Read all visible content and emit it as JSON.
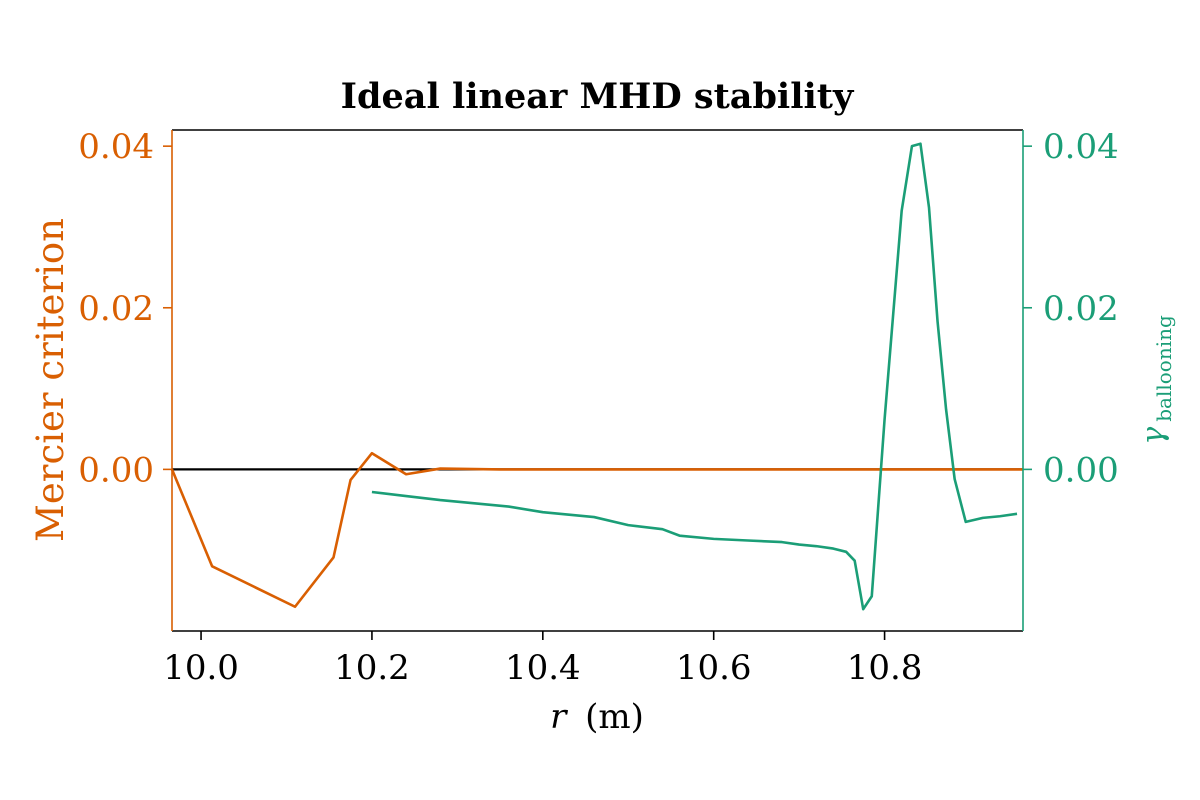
{
  "chart_data": {
    "type": "line",
    "title": "Ideal linear MHD stability",
    "xlabel": "r (m)",
    "xlabel_var": "r",
    "xlabel_unit": "(m)",
    "xlim": [
      9.966,
      10.962
    ],
    "x_ticks": [
      10.0,
      10.2,
      10.4,
      10.6,
      10.8
    ],
    "x_tick_labels": [
      "10.0",
      "10.2",
      "10.4",
      "10.6",
      "10.8"
    ],
    "ylabel_left": "Mercier criterion",
    "ylabel_right": "γ_ballooning",
    "ylabel_right_symbol": "γ",
    "ylabel_right_sub": "ballooning",
    "ylim_left": [
      -0.02,
      0.042
    ],
    "ylim_right": [
      -0.02,
      0.042
    ],
    "y_ticks_left": [
      0.0,
      0.02,
      0.04
    ],
    "y_tick_labels_left": [
      "0.00",
      "0.02",
      "0.04"
    ],
    "y_ticks_right": [
      0.0,
      0.02,
      0.04
    ],
    "y_tick_labels_right": [
      "0.00",
      "0.02",
      "0.04"
    ],
    "grid": false,
    "zero_line": 0.0,
    "colors": {
      "mercier": "#d95f02",
      "ballooning": "#1b9e77",
      "zero_line": "#000000",
      "text": "#000000"
    },
    "series": [
      {
        "name": "Mercier criterion",
        "axis": "left",
        "x": [
          9.966,
          10.013,
          10.11,
          10.155,
          10.175,
          10.2,
          10.24,
          10.28,
          10.35,
          10.5,
          10.7,
          10.962
        ],
        "y": [
          0.0,
          -0.012,
          -0.017,
          -0.0109,
          -0.0013,
          0.002,
          -0.0006,
          0.0001,
          0.0,
          0.0,
          0.0,
          0.0
        ]
      },
      {
        "name": "γ_ballooning",
        "axis": "right",
        "x": [
          10.2,
          10.24,
          10.28,
          10.32,
          10.36,
          10.4,
          10.42,
          10.46,
          10.5,
          10.54,
          10.56,
          10.6,
          10.64,
          10.68,
          10.7,
          10.72,
          10.74,
          10.755,
          10.765,
          10.775,
          10.785,
          10.8,
          10.82,
          10.832,
          10.842,
          10.852,
          10.862,
          10.872,
          10.882,
          10.895,
          10.915,
          10.935,
          10.955
        ],
        "y": [
          -0.0028,
          -0.0033,
          -0.0038,
          -0.0042,
          -0.0046,
          -0.0053,
          -0.0055,
          -0.0059,
          -0.0069,
          -0.0074,
          -0.0082,
          -0.0086,
          -0.0088,
          -0.009,
          -0.0093,
          -0.0095,
          -0.0098,
          -0.0102,
          -0.0113,
          -0.0173,
          -0.0157,
          0.0062,
          0.032,
          0.04,
          0.0403,
          0.0324,
          0.0183,
          0.0074,
          -0.0012,
          -0.0065,
          -0.006,
          -0.0058,
          -0.0055
        ]
      }
    ]
  }
}
